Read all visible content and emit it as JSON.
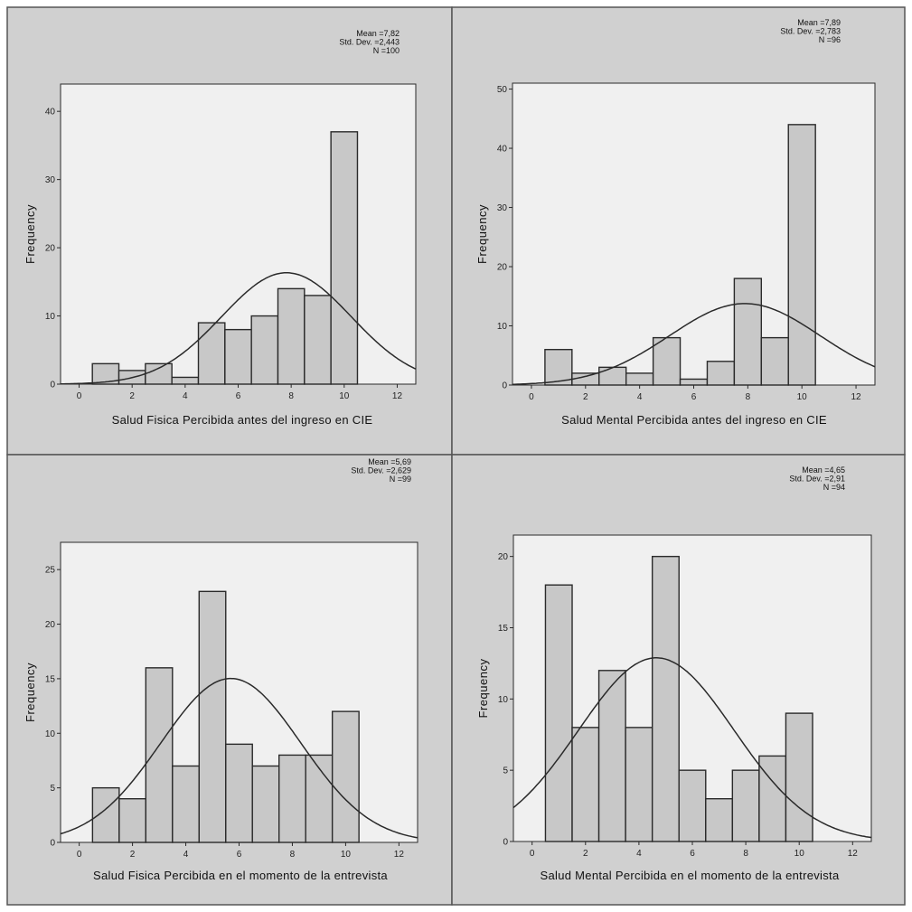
{
  "frame_color": "#555555",
  "panel_bg": "#d0d0d0",
  "plot_bg": "#f0f0f0",
  "bar_fill": "#c8c8c8",
  "stroke": "#2a2a2a",
  "chart_data": [
    {
      "type": "bar",
      "subtype": "histogram-with-normal-curve",
      "xlabel": "Salud Fisica Percibida antes del ingreso en CIE",
      "ylabel": "Frequency",
      "stats": [
        "Mean =7,82",
        "Std. Dev. =2,443",
        "N =100"
      ],
      "mean": 7.82,
      "sd": 2.443,
      "n": 100,
      "xlim": [
        -0.7,
        12.7
      ],
      "ylim": [
        0,
        44
      ],
      "xticks": [
        "0",
        "2",
        "4",
        "6",
        "8",
        "10",
        "12"
      ],
      "yticks": [
        "0",
        "10",
        "20",
        "30",
        "40"
      ],
      "x": [
        1,
        2,
        3,
        4,
        5,
        6,
        7,
        8,
        9,
        10
      ],
      "values": [
        3,
        2,
        3,
        1,
        9,
        8,
        10,
        14,
        13,
        37
      ]
    },
    {
      "type": "bar",
      "subtype": "histogram-with-normal-curve",
      "xlabel": "Salud Mental Percibida antes del ingreso en CIE",
      "ylabel": "Frequency",
      "stats": [
        "Mean =7,89",
        "Std. Dev. =2,783",
        "N =96"
      ],
      "mean": 7.89,
      "sd": 2.783,
      "n": 96,
      "xlim": [
        -0.7,
        12.7
      ],
      "ylim": [
        0,
        51
      ],
      "xticks": [
        "0",
        "2",
        "4",
        "6",
        "8",
        "10",
        "12"
      ],
      "yticks": [
        "0",
        "10",
        "20",
        "30",
        "40",
        "50"
      ],
      "x": [
        1,
        2,
        3,
        4,
        5,
        6,
        7,
        8,
        9,
        10
      ],
      "values": [
        6,
        2,
        3,
        2,
        8,
        1,
        4,
        18,
        8,
        44
      ]
    },
    {
      "type": "bar",
      "subtype": "histogram-with-normal-curve",
      "xlabel": "Salud Fisica Percibida en el momento de la entrevista",
      "ylabel": "Frequency",
      "stats": [
        "Mean =5,69",
        "Std. Dev. =2,629",
        "N =99"
      ],
      "mean": 5.69,
      "sd": 2.629,
      "n": 99,
      "xlim": [
        -0.7,
        12.7
      ],
      "ylim": [
        0,
        27.5
      ],
      "xticks": [
        "0",
        "2",
        "4",
        "6",
        "8",
        "10",
        "12"
      ],
      "yticks": [
        "0",
        "5",
        "10",
        "15",
        "20",
        "25"
      ],
      "x": [
        1,
        2,
        3,
        4,
        5,
        6,
        7,
        8,
        9,
        10
      ],
      "values": [
        5,
        4,
        16,
        7,
        23,
        9,
        7,
        8,
        8,
        12
      ]
    },
    {
      "type": "bar",
      "subtype": "histogram-with-normal-curve",
      "xlabel": "Salud Mental Percibida en el momento de la entrevista",
      "ylabel": "Frequency",
      "stats": [
        "Mean =4,65",
        "Std. Dev. =2,91",
        "N =94"
      ],
      "mean": 4.65,
      "sd": 2.91,
      "n": 94,
      "xlim": [
        -0.7,
        12.7
      ],
      "ylim": [
        0,
        21.5
      ],
      "xticks": [
        "0",
        "2",
        "4",
        "6",
        "8",
        "10",
        "12"
      ],
      "yticks": [
        "0",
        "5",
        "10",
        "15",
        "20"
      ],
      "x": [
        1,
        2,
        3,
        4,
        5,
        6,
        7,
        8,
        9,
        10
      ],
      "values": [
        18,
        8,
        12,
        8,
        20,
        5,
        3,
        5,
        6,
        9
      ]
    }
  ]
}
